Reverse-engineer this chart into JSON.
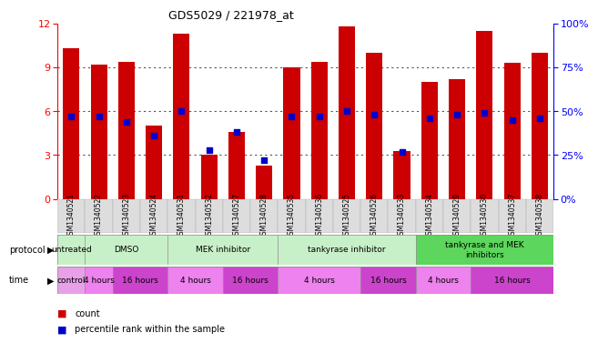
{
  "title": "GDS5029 / 221978_at",
  "samples": [
    "GSM1340521",
    "GSM1340522",
    "GSM1340523",
    "GSM1340524",
    "GSM1340531",
    "GSM1340532",
    "GSM1340527",
    "GSM1340528",
    "GSM1340535",
    "GSM1340536",
    "GSM1340525",
    "GSM1340526",
    "GSM1340533",
    "GSM1340534",
    "GSM1340529",
    "GSM1340530",
    "GSM1340537",
    "GSM1340538"
  ],
  "count_values": [
    10.3,
    9.2,
    9.4,
    5.0,
    11.3,
    3.0,
    4.6,
    2.3,
    9.0,
    9.4,
    11.8,
    10.0,
    3.3,
    8.0,
    8.2,
    11.5,
    9.3,
    10.0
  ],
  "percentile_values": [
    47,
    47,
    44,
    36,
    50,
    28,
    38,
    22,
    47,
    47,
    50,
    48,
    27,
    46,
    48,
    49,
    45,
    46
  ],
  "bar_color": "#CC0000",
  "blue_color": "#0000CC",
  "ylim_left": [
    0,
    12
  ],
  "ylim_right": [
    0,
    100
  ],
  "yticks_left": [
    0,
    3,
    6,
    9,
    12
  ],
  "yticks_right": [
    0,
    25,
    50,
    75,
    100
  ],
  "protocols": [
    {
      "label": "untreated",
      "start": 0,
      "end": 1,
      "color": "#C8F0C8"
    },
    {
      "label": "DMSO",
      "start": 1,
      "end": 4,
      "color": "#C8F0C8"
    },
    {
      "label": "MEK inhibitor",
      "start": 4,
      "end": 8,
      "color": "#C8F0C8"
    },
    {
      "label": "tankyrase inhibitor",
      "start": 8,
      "end": 13,
      "color": "#C8F0C8"
    },
    {
      "label": "tankyrase and MEK\ninhibitors",
      "start": 13,
      "end": 18,
      "color": "#5CD65C"
    }
  ],
  "times": [
    {
      "label": "control",
      "start": 0,
      "end": 1,
      "color": "#E8A0E8"
    },
    {
      "label": "4 hours",
      "start": 1,
      "end": 2,
      "color": "#EE82EE"
    },
    {
      "label": "16 hours",
      "start": 2,
      "end": 4,
      "color": "#CC44CC"
    },
    {
      "label": "4 hours",
      "start": 4,
      "end": 6,
      "color": "#EE82EE"
    },
    {
      "label": "16 hours",
      "start": 6,
      "end": 8,
      "color": "#CC44CC"
    },
    {
      "label": "4 hours",
      "start": 8,
      "end": 11,
      "color": "#EE82EE"
    },
    {
      "label": "16 hours",
      "start": 11,
      "end": 13,
      "color": "#CC44CC"
    },
    {
      "label": "4 hours",
      "start": 13,
      "end": 15,
      "color": "#EE82EE"
    },
    {
      "label": "16 hours",
      "start": 15,
      "end": 18,
      "color": "#CC44CC"
    }
  ],
  "xticklabel_bg": "#DDDDDD",
  "grid_color": "#555555",
  "legend_count_color": "#CC0000",
  "legend_percentile_color": "#0000CC"
}
